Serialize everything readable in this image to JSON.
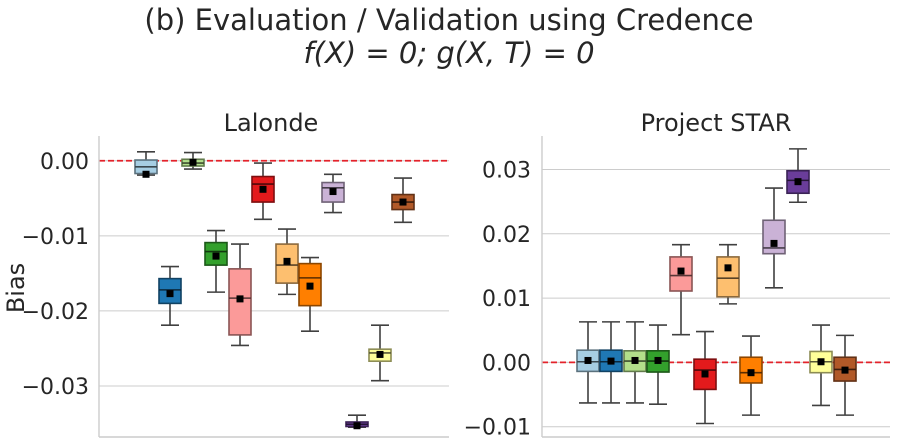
{
  "figure": {
    "title_line1": "(b) Evaluation / Validation using Credence",
    "title_line2": "f(X) = 0; g(X, T) = 0"
  },
  "chart_data": [
    {
      "type": "box",
      "title": "Lalonde",
      "ylabel": "Bias",
      "ylim": [
        -0.0368,
        0.0033
      ],
      "yticks": [
        0.0,
        -0.01,
        -0.02,
        -0.03
      ],
      "ytick_labels": [
        "0.00",
        "−0.01",
        "−0.02",
        "−0.03"
      ],
      "grid": "horizontal",
      "reference_line": 0.0,
      "boxes": [
        {
          "color": "#a6cee3",
          "whislo": -0.0019,
          "q1": -0.0017,
          "med": -0.0008,
          "q3": 0.0001,
          "whishi": 0.0012,
          "mean": -0.0018
        },
        {
          "color": "#1f78b4",
          "whislo": -0.0219,
          "q1": -0.019,
          "med": -0.0172,
          "q3": -0.0157,
          "whishi": -0.0141,
          "mean": -0.0177
        },
        {
          "color": "#b2df8a",
          "whislo": -0.0011,
          "q1": -0.0007,
          "med": -0.0003,
          "q3": 0.0002,
          "whishi": 0.0011,
          "mean": -0.0002
        },
        {
          "color": "#33a02c",
          "whislo": -0.0175,
          "q1": -0.0139,
          "med": -0.0121,
          "q3": -0.0109,
          "whishi": -0.0093,
          "mean": -0.0127
        },
        {
          "color": "#fb9a99",
          "whislo": -0.0246,
          "q1": -0.0232,
          "med": -0.0183,
          "q3": -0.0144,
          "whishi": -0.0111,
          "mean": -0.0184
        },
        {
          "color": "#e31a1c",
          "whislo": -0.0078,
          "q1": -0.0055,
          "med": -0.0031,
          "q3": -0.0021,
          "whishi": -0.0003,
          "mean": -0.0038
        },
        {
          "color": "#fdbf6f",
          "whislo": -0.0178,
          "q1": -0.0163,
          "med": -0.0139,
          "q3": -0.0111,
          "whishi": -0.0091,
          "mean": -0.0134
        },
        {
          "color": "#ff7f00",
          "whislo": -0.0227,
          "q1": -0.0193,
          "med": -0.0156,
          "q3": -0.0137,
          "whishi": -0.0129,
          "mean": -0.0167
        },
        {
          "color": "#cab2d6",
          "whislo": -0.0069,
          "q1": -0.0055,
          "med": -0.0036,
          "q3": -0.0029,
          "whishi": -0.0018,
          "mean": -0.0041
        },
        {
          "color": "#6a3d9a",
          "whislo": -0.0355,
          "q1": -0.0354,
          "med": -0.0351,
          "q3": -0.0348,
          "whishi": -0.0339,
          "mean": -0.0353
        },
        {
          "color": "#ffff99",
          "whislo": -0.0293,
          "q1": -0.0267,
          "med": -0.0256,
          "q3": -0.0251,
          "whishi": -0.0219,
          "mean": -0.0258
        },
        {
          "color": "#b15928",
          "whislo": -0.0082,
          "q1": -0.0065,
          "med": -0.0055,
          "q3": -0.0045,
          "whishi": -0.0023,
          "mean": -0.0055
        }
      ]
    },
    {
      "type": "box",
      "title": "Project STAR",
      "ylabel": "",
      "ylim": [
        -0.0116,
        0.0352
      ],
      "yticks": [
        0.03,
        0.02,
        0.01,
        0.0,
        -0.01
      ],
      "ytick_labels": [
        "0.03",
        "0.02",
        "0.01",
        "0.00",
        "−0.01"
      ],
      "grid": "horizontal",
      "reference_line": 0.0,
      "boxes": [
        {
          "color": "#a6cee3",
          "whislo": -0.0063,
          "q1": -0.0014,
          "med": 0.0001,
          "q3": 0.0019,
          "whishi": 0.0063,
          "mean": 0.0003
        },
        {
          "color": "#1f78b4",
          "whislo": -0.0063,
          "q1": -0.0014,
          "med": 0.0001,
          "q3": 0.0019,
          "whishi": 0.0063,
          "mean": 0.0002
        },
        {
          "color": "#b2df8a",
          "whislo": -0.0063,
          "q1": -0.0014,
          "med": 0.0002,
          "q3": 0.0018,
          "whishi": 0.0063,
          "mean": 0.0003
        },
        {
          "color": "#33a02c",
          "whislo": -0.0065,
          "q1": -0.0015,
          "med": 0.0002,
          "q3": 0.0018,
          "whishi": 0.0058,
          "mean": 0.0003
        },
        {
          "color": "#fb9a99",
          "whislo": 0.0043,
          "q1": 0.0111,
          "med": 0.0135,
          "q3": 0.0164,
          "whishi": 0.0183,
          "mean": 0.0142
        },
        {
          "color": "#e31a1c",
          "whislo": -0.0095,
          "q1": -0.0042,
          "med": -0.0012,
          "q3": 0.0005,
          "whishi": 0.0048,
          "mean": -0.0018
        },
        {
          "color": "#fdbf6f",
          "whislo": 0.0091,
          "q1": 0.0102,
          "med": 0.0131,
          "q3": 0.0164,
          "whishi": 0.0183,
          "mean": 0.0147
        },
        {
          "color": "#ff7f00",
          "whislo": -0.0082,
          "q1": -0.0032,
          "med": -0.0016,
          "q3": 0.0008,
          "whishi": 0.0041,
          "mean": -0.0016
        },
        {
          "color": "#cab2d6",
          "whislo": 0.0116,
          "q1": 0.0169,
          "med": 0.0178,
          "q3": 0.0221,
          "whishi": 0.0271,
          "mean": 0.0185
        },
        {
          "color": "#6a3d9a",
          "whislo": 0.0249,
          "q1": 0.0263,
          "med": 0.0283,
          "q3": 0.0298,
          "whishi": 0.0332,
          "mean": 0.0281
        },
        {
          "color": "#ffff99",
          "whislo": -0.0067,
          "q1": -0.0016,
          "med": 0.0001,
          "q3": 0.0017,
          "whishi": 0.0058,
          "mean": 0.0001
        },
        {
          "color": "#b15928",
          "whislo": -0.0082,
          "q1": -0.0029,
          "med": -0.0011,
          "q3": 0.0008,
          "whishi": 0.0042,
          "mean": -0.0012
        }
      ]
    }
  ]
}
